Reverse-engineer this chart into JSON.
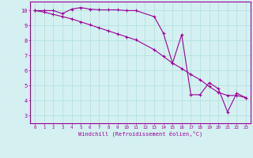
{
  "line1_x": [
    0,
    1,
    2,
    3,
    4,
    5,
    6,
    7,
    8,
    9,
    10,
    11,
    13,
    14,
    15,
    16,
    17,
    18,
    19,
    20,
    21,
    22,
    23
  ],
  "line1_y": [
    10,
    10,
    10,
    9.8,
    10.1,
    10.2,
    10.1,
    10.05,
    10.05,
    10.05,
    10.0,
    10.0,
    9.6,
    8.5,
    6.5,
    8.4,
    4.4,
    4.4,
    5.2,
    4.8,
    3.25,
    4.5,
    4.2
  ],
  "line2_x": [
    0,
    1,
    2,
    3,
    4,
    5,
    6,
    7,
    8,
    9,
    10,
    11,
    13,
    14,
    15,
    16,
    17,
    18,
    19,
    20,
    21,
    22,
    23
  ],
  "line2_y": [
    10,
    9.9,
    9.75,
    9.6,
    9.45,
    9.25,
    9.05,
    8.85,
    8.65,
    8.45,
    8.25,
    8.05,
    7.4,
    6.95,
    6.5,
    6.15,
    5.75,
    5.4,
    4.95,
    4.55,
    4.35,
    4.35,
    4.2
  ],
  "line_color": "#990099",
  "bg_color": "#d4f0f0",
  "grid_color": "#b0dede",
  "xlabel": "Windchill (Refroidissement éolien,°C)",
  "yticks": [
    3,
    4,
    5,
    6,
    7,
    8,
    9,
    10
  ],
  "xtick_labels": [
    "0",
    "1",
    "2",
    "3",
    "4",
    "5",
    "6",
    "7",
    "8",
    "9",
    "1011",
    "",
    "13141516171819202122 23"
  ],
  "ylim": [
    2.5,
    10.6
  ],
  "xlim": [
    -0.5,
    23.5
  ]
}
